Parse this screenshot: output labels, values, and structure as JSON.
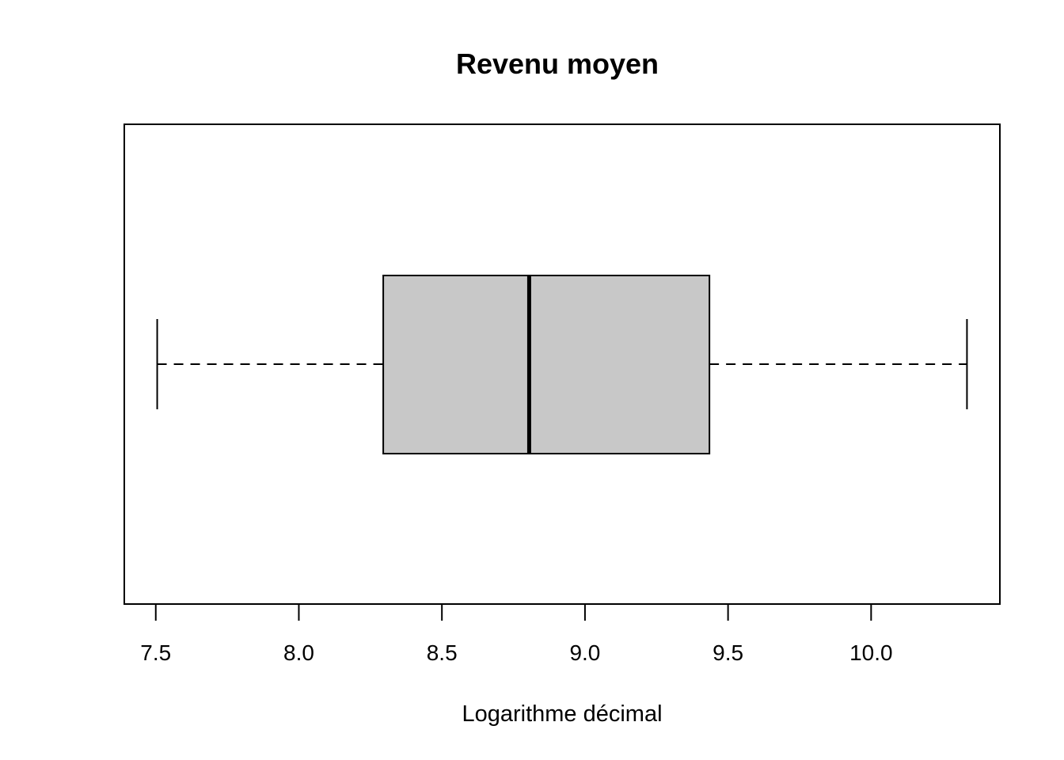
{
  "chart_data": {
    "type": "boxplot",
    "orientation": "horizontal",
    "title": "Revenu moyen",
    "xlabel": "Logarithme décimal",
    "ylabel": "",
    "xlim": [
      7.39,
      10.45
    ],
    "ticks": [
      {
        "value": 7.5,
        "label": "7.5"
      },
      {
        "value": 8.0,
        "label": "8.0"
      },
      {
        "value": 8.5,
        "label": "8.5"
      },
      {
        "value": 9.0,
        "label": "9.0"
      },
      {
        "value": 9.5,
        "label": "9.5"
      },
      {
        "value": 10.0,
        "label": "10.0"
      }
    ],
    "box": {
      "whisker_low": 7.505,
      "q1": 8.295,
      "median": 8.805,
      "q3": 9.435,
      "whisker_high": 10.335
    },
    "grid": false,
    "colors": {
      "box_fill": "#c8c8c8",
      "stroke": "#000000"
    }
  }
}
